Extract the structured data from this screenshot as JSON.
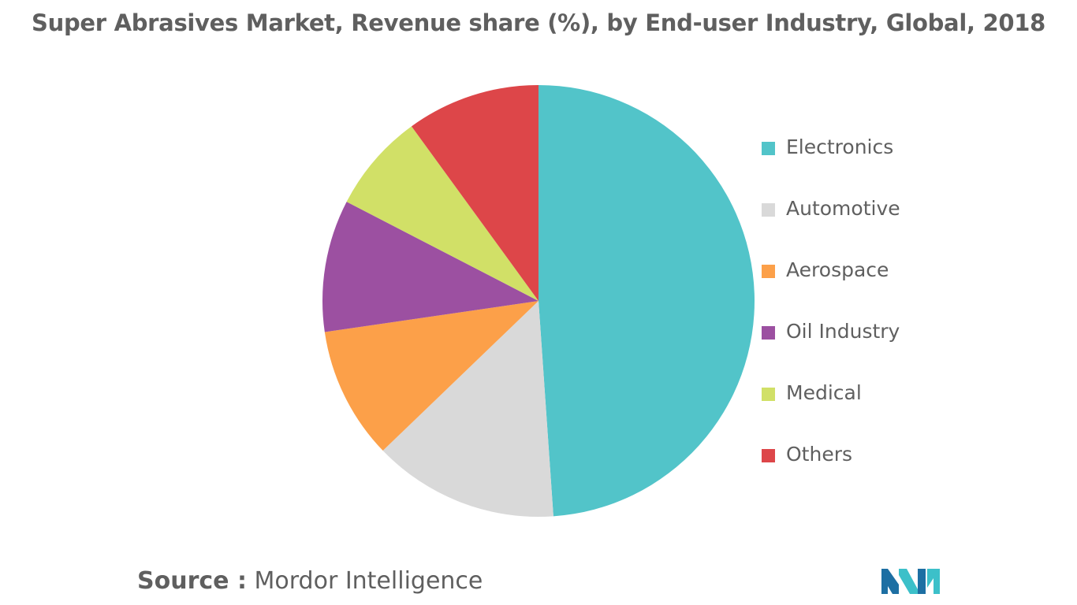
{
  "chart_data": {
    "type": "pie",
    "title": "Super Abrasives Market, Revenue share (%), by End-user Industry, Global, 2018",
    "slices": [
      {
        "label": "Electronics",
        "value": 48.9,
        "color": "#52c4c9"
      },
      {
        "label": "Automotive",
        "value": 13.9,
        "color": "#d9d9d9"
      },
      {
        "label": "Aerospace",
        "value": 9.9,
        "color": "#fca049"
      },
      {
        "label": "Oil Industry",
        "value": 9.9,
        "color": "#9c50a1"
      },
      {
        "label": "Medical",
        "value": 7.4,
        "color": "#d1e067"
      },
      {
        "label": "Others",
        "value": 10.0,
        "color": "#dd4649"
      }
    ],
    "legend_position": "right",
    "start_angle_deg": 0,
    "direction": "clockwise"
  },
  "source": {
    "label": "Source :",
    "value": "Mordor Intelligence"
  },
  "logo": {
    "name": "mordor-intelligence-logo",
    "color_primary": "#1d6fa3",
    "color_secondary": "#3cc0c9"
  }
}
